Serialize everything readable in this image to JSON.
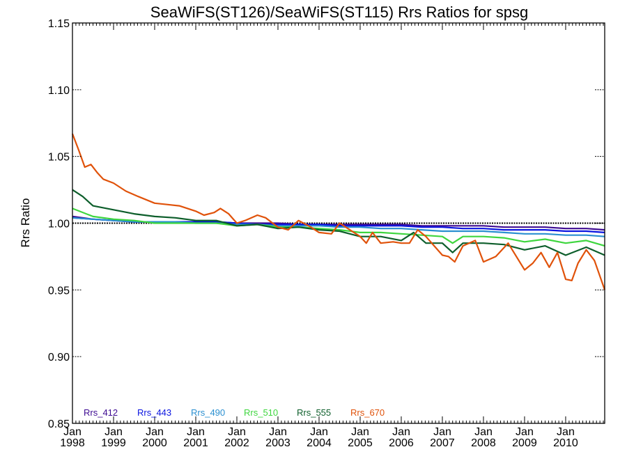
{
  "chart_data": {
    "type": "line",
    "title": "SeaWiFS(ST126)/SeaWiFS(ST115)  Rrs Ratios for spsg",
    "xlabel": "",
    "ylabel": "Rrs Ratio",
    "xlim": [
      1998.0,
      2010.95
    ],
    "ylim": [
      0.85,
      1.15
    ],
    "yticks": [
      {
        "value": 0.85,
        "label": "0.85"
      },
      {
        "value": 0.9,
        "label": "0.90"
      },
      {
        "value": 0.95,
        "label": "0.95"
      },
      {
        "value": 1.0,
        "label": "1.00"
      },
      {
        "value": 1.05,
        "label": "1.05"
      },
      {
        "value": 1.1,
        "label": "1.10"
      },
      {
        "value": 1.15,
        "label": "1.15"
      }
    ],
    "xticks": [
      {
        "value": 1998,
        "month": "Jan",
        "year": "1998"
      },
      {
        "value": 1999,
        "month": "Jan",
        "year": "1999"
      },
      {
        "value": 2000,
        "month": "Jan",
        "year": "2000"
      },
      {
        "value": 2001,
        "month": "Jan",
        "year": "2001"
      },
      {
        "value": 2002,
        "month": "Jan",
        "year": "2002"
      },
      {
        "value": 2003,
        "month": "Jan",
        "year": "2003"
      },
      {
        "value": 2004,
        "month": "Jan",
        "year": "2004"
      },
      {
        "value": 2005,
        "month": "Jan",
        "year": "2005"
      },
      {
        "value": 2006,
        "month": "Jan",
        "year": "2006"
      },
      {
        "value": 2007,
        "month": "Jan",
        "year": "2007"
      },
      {
        "value": 2008,
        "month": "Jan",
        "year": "2008"
      },
      {
        "value": 2009,
        "month": "Jan",
        "year": "2009"
      },
      {
        "value": 2010,
        "month": "Jan",
        "year": "2010"
      }
    ],
    "reference_line": 1.0,
    "legend_position": "bottom-left",
    "series": [
      {
        "name": "Rrs_412",
        "color": "#3d0a91",
        "x": [
          1998.0,
          1998.5,
          1999.0,
          1999.5,
          2000.0,
          2000.5,
          2001.0,
          2001.5,
          2002.0,
          2002.5,
          2003.0,
          2003.5,
          2004.0,
          2004.5,
          2005.0,
          2005.5,
          2006.0,
          2006.5,
          2007.0,
          2007.5,
          2008.0,
          2008.5,
          2009.0,
          2009.5,
          2010.0,
          2010.5,
          2010.95
        ],
        "y": [
          1.005,
          1.003,
          1.002,
          1.001,
          1.001,
          1.001,
          1.001,
          1.001,
          1.0,
          1.0,
          1.0,
          0.999,
          0.999,
          0.999,
          0.999,
          0.999,
          0.999,
          0.998,
          0.998,
          0.998,
          0.998,
          0.997,
          0.997,
          0.997,
          0.996,
          0.996,
          0.995
        ]
      },
      {
        "name": "Rrs_443",
        "color": "#0a14e0",
        "x": [
          1998.0,
          1998.5,
          1999.0,
          1999.5,
          2000.0,
          2000.5,
          2001.0,
          2001.5,
          2002.0,
          2002.5,
          2003.0,
          2003.5,
          2004.0,
          2004.5,
          2005.0,
          2005.5,
          2006.0,
          2006.5,
          2007.0,
          2007.5,
          2008.0,
          2008.5,
          2009.0,
          2009.5,
          2010.0,
          2010.5,
          2010.95
        ],
        "y": [
          1.004,
          1.003,
          1.002,
          1.001,
          1.001,
          1.001,
          1.001,
          1.001,
          1.0,
          0.999,
          0.999,
          0.999,
          0.999,
          0.998,
          0.998,
          0.998,
          0.998,
          0.997,
          0.997,
          0.996,
          0.996,
          0.995,
          0.995,
          0.995,
          0.994,
          0.994,
          0.993
        ]
      },
      {
        "name": "Rrs_490",
        "color": "#2a8fd0",
        "x": [
          1998.0,
          1998.5,
          1999.0,
          1999.5,
          2000.0,
          2000.5,
          2001.0,
          2001.5,
          2002.0,
          2002.5,
          2003.0,
          2003.5,
          2004.0,
          2004.5,
          2005.0,
          2005.5,
          2006.0,
          2006.5,
          2007.0,
          2007.5,
          2008.0,
          2008.5,
          2009.0,
          2009.5,
          2010.0,
          2010.5,
          2010.95
        ],
        "y": [
          1.004,
          1.003,
          1.002,
          1.001,
          1.001,
          1.001,
          1.0,
          1.0,
          0.999,
          0.999,
          0.998,
          0.998,
          0.998,
          0.997,
          0.997,
          0.996,
          0.996,
          0.995,
          0.994,
          0.994,
          0.994,
          0.993,
          0.992,
          0.992,
          0.991,
          0.991,
          0.99
        ]
      },
      {
        "name": "Rrs_510",
        "color": "#3ed63e",
        "x": [
          1998.0,
          1998.5,
          1999.0,
          1999.5,
          2000.0,
          2000.5,
          2001.0,
          2001.5,
          2002.0,
          2002.5,
          2003.0,
          2003.5,
          2004.0,
          2004.5,
          2005.0,
          2005.5,
          2006.0,
          2006.5,
          2007.0,
          2007.25,
          2007.5,
          2008.0,
          2008.5,
          2009.0,
          2009.5,
          2010.0,
          2010.5,
          2010.95
        ],
        "y": [
          1.011,
          1.005,
          1.003,
          1.002,
          1.0,
          1.0,
          1.0,
          1.0,
          0.998,
          0.999,
          0.997,
          0.997,
          0.996,
          0.995,
          0.993,
          0.993,
          0.992,
          0.991,
          0.99,
          0.985,
          0.99,
          0.99,
          0.989,
          0.986,
          0.988,
          0.985,
          0.987,
          0.983
        ]
      },
      {
        "name": "Rrs_555",
        "color": "#0d5e2b",
        "x": [
          1998.0,
          1998.25,
          1998.5,
          1999.0,
          1999.5,
          2000.0,
          2000.5,
          2001.0,
          2001.3,
          2001.5,
          2002.0,
          2002.5,
          2003.0,
          2003.5,
          2004.0,
          2004.5,
          2005.0,
          2005.5,
          2006.0,
          2006.3,
          2006.6,
          2007.0,
          2007.25,
          2007.5,
          2008.0,
          2008.5,
          2009.0,
          2009.5,
          2010.0,
          2010.5,
          2010.95
        ],
        "y": [
          1.025,
          1.02,
          1.013,
          1.01,
          1.007,
          1.005,
          1.004,
          1.002,
          1.002,
          1.002,
          0.998,
          0.999,
          0.996,
          0.997,
          0.995,
          0.994,
          0.99,
          0.99,
          0.987,
          0.993,
          0.985,
          0.985,
          0.978,
          0.985,
          0.985,
          0.984,
          0.98,
          0.983,
          0.976,
          0.982,
          0.976
        ]
      },
      {
        "name": "Rrs_670",
        "color": "#e0520a",
        "x": [
          1998.0,
          1998.15,
          1998.3,
          1998.45,
          1998.6,
          1998.75,
          1999.0,
          1999.3,
          1999.6,
          2000.0,
          2000.3,
          2000.6,
          2001.0,
          2001.2,
          2001.45,
          2001.6,
          2001.8,
          2002.0,
          2002.2,
          2002.5,
          2002.7,
          2003.0,
          2003.25,
          2003.5,
          2003.8,
          2004.0,
          2004.3,
          2004.5,
          2004.7,
          2005.0,
          2005.15,
          2005.3,
          2005.5,
          2005.8,
          2006.0,
          2006.2,
          2006.4,
          2006.6,
          2006.8,
          2007.0,
          2007.15,
          2007.3,
          2007.5,
          2007.8,
          2008.0,
          2008.3,
          2008.6,
          2009.0,
          2009.2,
          2009.4,
          2009.6,
          2009.8,
          2010.0,
          2010.15,
          2010.3,
          2010.5,
          2010.7,
          2010.95
        ],
        "y": [
          1.067,
          1.055,
          1.042,
          1.044,
          1.038,
          1.033,
          1.03,
          1.024,
          1.02,
          1.015,
          1.014,
          1.013,
          1.009,
          1.006,
          1.008,
          1.011,
          1.007,
          1.0,
          1.002,
          1.006,
          1.004,
          0.997,
          0.995,
          1.002,
          0.997,
          0.993,
          0.992,
          1.0,
          0.996,
          0.99,
          0.985,
          0.993,
          0.985,
          0.986,
          0.985,
          0.985,
          0.995,
          0.99,
          0.983,
          0.976,
          0.975,
          0.971,
          0.983,
          0.987,
          0.971,
          0.975,
          0.985,
          0.965,
          0.97,
          0.978,
          0.967,
          0.978,
          0.958,
          0.957,
          0.97,
          0.98,
          0.972,
          0.95
        ]
      }
    ]
  }
}
